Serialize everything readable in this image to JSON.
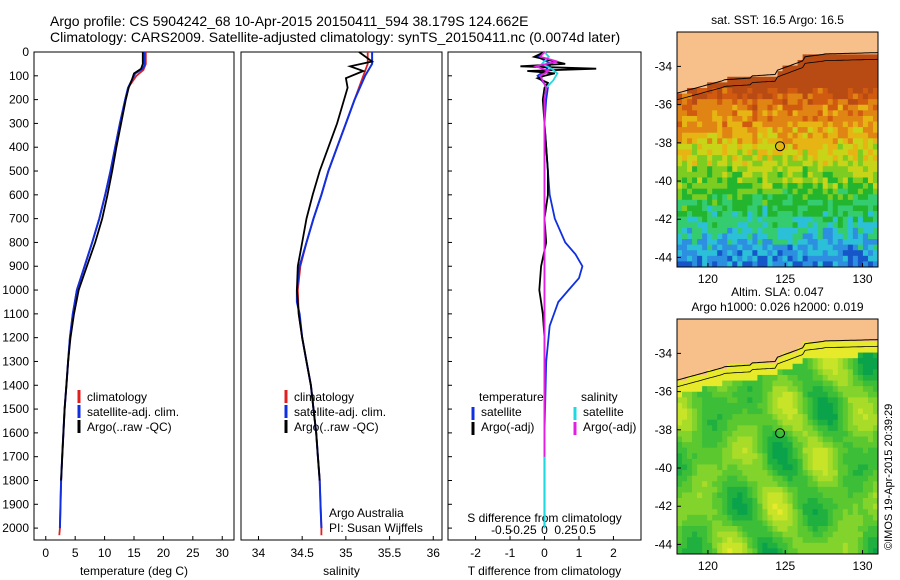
{
  "header": {
    "line1": "Argo profile: CS 5904242_68 10-Apr-2015 20150411_594 38.179S 124.662E",
    "line2": "Climatology: CARS2009. Satellite-adjusted climatology: synTS_20150411.nc (0.0074d later)"
  },
  "chart_data": [
    {
      "type": "line",
      "id": "temperature",
      "xlabel": "temperature (deg C)",
      "ylabel": "",
      "xlim": [
        -2,
        32
      ],
      "ylim": [
        2050,
        0
      ],
      "xticks": [
        0,
        5,
        10,
        15,
        20,
        25,
        30
      ],
      "yticks": [
        0,
        100,
        200,
        300,
        400,
        500,
        600,
        700,
        800,
        900,
        1000,
        1100,
        1200,
        1300,
        1400,
        1500,
        1600,
        1700,
        1800,
        1900,
        2000
      ],
      "legend": {
        "placement": "lower-right",
        "labels": [
          "climatology",
          "satellite-adj. clim.",
          "Argo(..raw -QC)"
        ]
      },
      "series": [
        {
          "name": "climatology",
          "color": "#e02020",
          "points": [
            [
              17.0,
              0
            ],
            [
              17.0,
              50
            ],
            [
              16.6,
              75
            ],
            [
              15.4,
              100
            ],
            [
              14.7,
              125
            ],
            [
              14.0,
              150
            ],
            [
              13.5,
              200
            ],
            [
              12.6,
              300
            ],
            [
              11.8,
              400
            ],
            [
              11.0,
              500
            ],
            [
              10.1,
              600
            ],
            [
              9.1,
              700
            ],
            [
              7.9,
              800
            ],
            [
              6.6,
              900
            ],
            [
              5.3,
              1000
            ],
            [
              4.6,
              1100
            ],
            [
              4.1,
              1200
            ],
            [
              3.8,
              1300
            ],
            [
              3.5,
              1400
            ],
            [
              3.2,
              1500
            ],
            [
              3.0,
              1600
            ],
            [
              2.8,
              1700
            ],
            [
              2.6,
              1800
            ],
            [
              2.5,
              1900
            ],
            [
              2.4,
              2000
            ],
            [
              2.3,
              2030
            ]
          ]
        },
        {
          "name": "satellite-adj. clim.",
          "color": "#1030e0",
          "points": [
            [
              16.8,
              0
            ],
            [
              16.8,
              55
            ],
            [
              16.5,
              70
            ],
            [
              15.2,
              90
            ],
            [
              14.6,
              120
            ],
            [
              14.0,
              150
            ],
            [
              13.5,
              200
            ],
            [
              12.6,
              300
            ],
            [
              11.8,
              400
            ],
            [
              11.0,
              500
            ],
            [
              10.1,
              600
            ],
            [
              9.1,
              700
            ],
            [
              7.9,
              800
            ],
            [
              6.6,
              900
            ],
            [
              5.3,
              1000
            ],
            [
              4.6,
              1100
            ],
            [
              4.1,
              1200
            ],
            [
              3.8,
              1300
            ],
            [
              3.5,
              1400
            ],
            [
              3.2,
              1500
            ],
            [
              3.0,
              1600
            ],
            [
              2.8,
              1700
            ],
            [
              2.6,
              1800
            ],
            [
              2.5,
              1900
            ],
            [
              2.4,
              2000
            ]
          ]
        },
        {
          "name": "Argo(..raw -QC)",
          "color": "#000000",
          "points": [
            [
              16.5,
              0
            ],
            [
              16.5,
              50
            ],
            [
              16.2,
              70
            ],
            [
              15.0,
              90
            ],
            [
              14.6,
              120
            ],
            [
              14.1,
              150
            ],
            [
              13.6,
              200
            ],
            [
              12.8,
              300
            ],
            [
              12.0,
              400
            ],
            [
              11.3,
              500
            ],
            [
              10.5,
              600
            ],
            [
              9.6,
              700
            ],
            [
              8.4,
              800
            ],
            [
              7.0,
              900
            ],
            [
              5.6,
              1000
            ],
            [
              4.8,
              1100
            ],
            [
              4.2,
              1200
            ],
            [
              3.8,
              1300
            ],
            [
              3.5,
              1400
            ],
            [
              3.2,
              1500
            ],
            [
              3.0,
              1600
            ],
            [
              2.8,
              1700
            ],
            [
              2.6,
              1800
            ]
          ]
        }
      ]
    },
    {
      "type": "line",
      "id": "salinity",
      "xlabel": "salinity",
      "xlim": [
        33.8,
        36.1
      ],
      "ylim": [
        2050,
        0
      ],
      "xticks": [
        34,
        34.5,
        35,
        35.5,
        36
      ],
      "legend": {
        "placement": "lower-right",
        "labels": [
          "climatology",
          "satellite-adj. clim.",
          "Argo(..raw -QC)"
        ]
      },
      "annotation": [
        "Argo Australia",
        "PI: Susan Wijffels"
      ],
      "series": [
        {
          "name": "climatology",
          "color": "#e02020",
          "points": [
            [
              35.25,
              0
            ],
            [
              35.25,
              50
            ],
            [
              35.2,
              100
            ],
            [
              35.1,
              200
            ],
            [
              35.0,
              300
            ],
            [
              34.9,
              400
            ],
            [
              34.8,
              500
            ],
            [
              34.72,
              600
            ],
            [
              34.63,
              700
            ],
            [
              34.55,
              800
            ],
            [
              34.48,
              900
            ],
            [
              34.45,
              1000
            ],
            [
              34.46,
              1100
            ],
            [
              34.5,
              1200
            ],
            [
              34.55,
              1300
            ],
            [
              34.6,
              1400
            ],
            [
              34.63,
              1500
            ],
            [
              34.66,
              1600
            ],
            [
              34.68,
              1700
            ],
            [
              34.7,
              1800
            ],
            [
              34.71,
              1900
            ],
            [
              34.72,
              2000
            ],
            [
              34.72,
              2030
            ]
          ]
        },
        {
          "name": "satellite-adj. clim.",
          "color": "#1030e0",
          "points": [
            [
              35.3,
              0
            ],
            [
              35.3,
              50
            ],
            [
              35.22,
              100
            ],
            [
              35.1,
              200
            ],
            [
              35.0,
              300
            ],
            [
              34.9,
              400
            ],
            [
              34.8,
              500
            ],
            [
              34.72,
              600
            ],
            [
              34.63,
              700
            ],
            [
              34.55,
              800
            ],
            [
              34.47,
              900
            ],
            [
              34.44,
              1000
            ],
            [
              34.44,
              1050
            ],
            [
              34.47,
              1100
            ],
            [
              34.5,
              1200
            ],
            [
              34.55,
              1300
            ],
            [
              34.6,
              1400
            ],
            [
              34.63,
              1500
            ],
            [
              34.66,
              1600
            ],
            [
              34.68,
              1700
            ],
            [
              34.7,
              1800
            ],
            [
              34.71,
              1900
            ],
            [
              34.72,
              2000
            ]
          ]
        },
        {
          "name": "Argo(..raw -QC)",
          "color": "#000000",
          "points": [
            [
              35.15,
              0
            ],
            [
              35.3,
              40
            ],
            [
              35.05,
              60
            ],
            [
              35.2,
              80
            ],
            [
              35.0,
              110
            ],
            [
              35.02,
              150
            ],
            [
              34.98,
              200
            ],
            [
              34.9,
              300
            ],
            [
              34.8,
              400
            ],
            [
              34.7,
              500
            ],
            [
              34.62,
              600
            ],
            [
              34.55,
              700
            ],
            [
              34.5,
              800
            ],
            [
              34.45,
              900
            ],
            [
              34.44,
              1000
            ],
            [
              34.46,
              1100
            ],
            [
              34.5,
              1200
            ],
            [
              34.55,
              1300
            ],
            [
              34.6,
              1400
            ],
            [
              34.63,
              1500
            ],
            [
              34.66,
              1600
            ],
            [
              34.68,
              1700
            ],
            [
              34.7,
              1800
            ]
          ]
        }
      ]
    },
    {
      "type": "line",
      "id": "difference",
      "xlabel": "T difference from climatology",
      "xlabel_top": "S difference from climatology",
      "xlim": [
        -2.8,
        2.8
      ],
      "ylim": [
        2050,
        0
      ],
      "xticks": [
        -2,
        -1,
        0,
        1,
        2
      ],
      "sticks": [
        {
          "value": -0.5,
          "label": "-0.5"
        },
        {
          "value": -0.25,
          "label": "-0.25"
        },
        {
          "value": 0,
          "label": "0"
        },
        {
          "value": 0.25,
          "label": "0.25"
        },
        {
          "value": 0.5,
          "label": "0.5"
        }
      ],
      "legend_title_left": "temperature",
      "legend_title_right": "salinity",
      "legend_left": [
        "satellite",
        "Argo(-adj)"
      ],
      "legend_right": [
        "satellite",
        "Argo(-adj)"
      ],
      "series": [
        {
          "name": "T satellite",
          "color": "#1030e0",
          "points": [
            [
              0,
              0
            ],
            [
              -0.2,
              20
            ],
            [
              0.2,
              50
            ],
            [
              0,
              80
            ],
            [
              -0.2,
              100
            ],
            [
              0.1,
              150
            ],
            [
              0.05,
              200
            ],
            [
              0.0,
              300
            ],
            [
              0.05,
              400
            ],
            [
              0.1,
              500
            ],
            [
              0.15,
              600
            ],
            [
              0.3,
              700
            ],
            [
              0.6,
              800
            ],
            [
              0.9,
              850
            ],
            [
              1.1,
              900
            ],
            [
              1.0,
              950
            ],
            [
              0.7,
              1000
            ],
            [
              0.4,
              1050
            ],
            [
              0.15,
              1150
            ],
            [
              0.05,
              1300
            ],
            [
              0,
              1600
            ],
            [
              0,
              2000
            ]
          ]
        },
        {
          "name": "T Argo(-adj)",
          "color": "#000000",
          "points": [
            [
              0,
              0
            ],
            [
              -0.3,
              20
            ],
            [
              0.6,
              50
            ],
            [
              -0.7,
              60
            ],
            [
              1.5,
              70
            ],
            [
              -0.5,
              80
            ],
            [
              0.3,
              90
            ],
            [
              0,
              100
            ],
            [
              -0.2,
              110
            ],
            [
              0.1,
              130
            ],
            [
              0,
              150
            ],
            [
              -0.05,
              200
            ],
            [
              0,
              300
            ],
            [
              0.05,
              400
            ],
            [
              0.1,
              500
            ],
            [
              0.1,
              600
            ],
            [
              0.0,
              700
            ],
            [
              0.05,
              800
            ],
            [
              -0.1,
              900
            ],
            [
              -0.15,
              1000
            ],
            [
              -0.1,
              1050
            ],
            [
              -0.05,
              1100
            ],
            [
              0,
              1200
            ],
            [
              0,
              1400
            ],
            [
              0,
              1700
            ]
          ]
        },
        {
          "name": "S satellite",
          "color": "#20d8e0",
          "points": [
            [
              0,
              0
            ],
            [
              0.05,
              20
            ],
            [
              -0.03,
              50
            ],
            [
              0.08,
              70
            ],
            [
              0.15,
              90
            ],
            [
              0.1,
              120
            ],
            [
              0.02,
              150
            ],
            [
              0.0,
              200
            ],
            [
              0.0,
              400
            ],
            [
              0.0,
              700
            ],
            [
              0.0,
              1000
            ],
            [
              0.0,
              1300
            ],
            [
              0.0,
              1600
            ],
            [
              0.0,
              2000
            ]
          ]
        },
        {
          "name": "S Argo(-adj)",
          "color": "#e020e0",
          "points": [
            [
              0,
              0
            ],
            [
              -0.05,
              20
            ],
            [
              0.15,
              40
            ],
            [
              -0.1,
              60
            ],
            [
              0.05,
              80
            ],
            [
              -0.05,
              100
            ],
            [
              0.02,
              150
            ],
            [
              0.0,
              200
            ],
            [
              0.0,
              400
            ],
            [
              0.0,
              700
            ],
            [
              0.0,
              1000
            ],
            [
              0.0,
              1300
            ],
            [
              0.0,
              1700
            ]
          ]
        }
      ]
    },
    {
      "type": "heatmap",
      "id": "sst-map",
      "title": "sat. SST: 16.5 Argo: 16.5",
      "xlim": [
        118,
        131
      ],
      "ylim": [
        -44.5,
        -32.2
      ],
      "xticks": [
        120,
        125,
        130
      ],
      "yticks": [
        -34,
        -36,
        -38,
        -40,
        -42,
        -44
      ],
      "marker": {
        "lon": 124.662,
        "lat": -38.179
      }
    },
    {
      "type": "heatmap",
      "id": "sla-map",
      "title": [
        "Altim. SLA: 0.047",
        "Argo h1000: 0.026 h2000: 0.019"
      ],
      "xlim": [
        118,
        131
      ],
      "ylim": [
        -44.5,
        -32.2
      ],
      "xticks": [
        120,
        125,
        130
      ],
      "yticks": [
        -34,
        -36,
        -38,
        -40,
        -42,
        -44
      ],
      "marker": {
        "lon": 124.662,
        "lat": -38.179
      }
    }
  ],
  "footer": {
    "credit": "©IMOS 19-Apr-2015 20:39:29"
  },
  "colors": {
    "land": "#f7c08a",
    "coast": "#000000"
  }
}
